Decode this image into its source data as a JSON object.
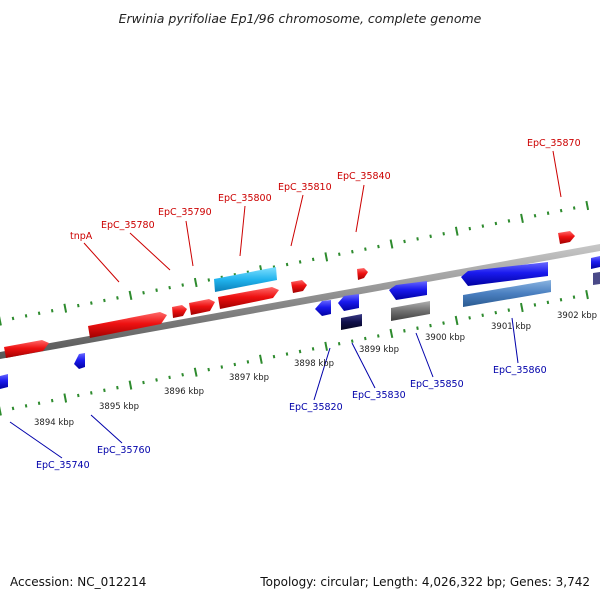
{
  "title": "Erwinia pyrifoliae Ep1/96 chromosome, complete genome",
  "footer": {
    "accession": "Accession: NC_012214",
    "summary": "Topology: circular; Length: 4,026,322 bp; Genes: 3,742"
  },
  "colors": {
    "forward_label": "#cc0000",
    "reverse_label": "#0000aa",
    "tick": "#2e8b2e",
    "backbone": "#8a8a8a"
  },
  "axis_labels": {
    "top": [
      "3901 kbp",
      "3902 kbp"
    ],
    "bottom": [
      "3894 kbp",
      "3895 kbp",
      "3896 kbp",
      "3897 kbp",
      "3898 kbp",
      "3899 kbp",
      "3900 kbp"
    ]
  },
  "gene_labels": {
    "forward": [
      "tnpA",
      "EpC_35780",
      "EpC_35790",
      "EpC_35800",
      "EpC_35810",
      "EpC_35840",
      "EpC_35870"
    ],
    "reverse": [
      "EpC_35740",
      "EpC_35760",
      "EpC_35820",
      "EpC_35830",
      "EpC_35850",
      "EpC_35860"
    ]
  }
}
